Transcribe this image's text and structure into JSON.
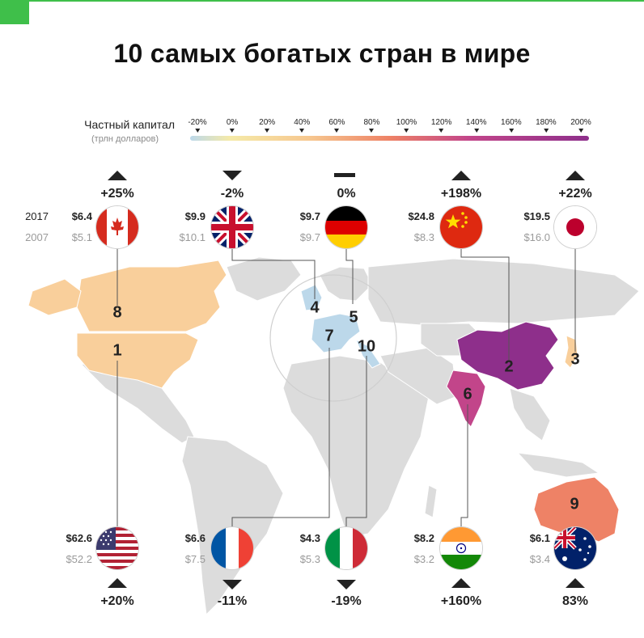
{
  "title": "10 самых богатых стран в мире",
  "legend": {
    "label": "Частный капитал",
    "sublabel": "(трлн долларов)",
    "ticks": [
      "-20%",
      "0%",
      "20%",
      "40%",
      "60%",
      "80%",
      "100%",
      "120%",
      "140%",
      "160%",
      "180%",
      "200%"
    ]
  },
  "years": {
    "y2017": "2017",
    "y2007": "2007"
  },
  "countries": {
    "canada": {
      "rank": "8",
      "v2017": "$6.4",
      "v2007": "$5.1",
      "change": "+25%",
      "direction": "up"
    },
    "uk": {
      "rank": "4",
      "v2017": "$9.9",
      "v2007": "$10.1",
      "change": "-2%",
      "direction": "down"
    },
    "germany": {
      "rank": "5",
      "v2017": "$9.7",
      "v2007": "$9.7",
      "change": "0%",
      "direction": "flat"
    },
    "china": {
      "rank": "2",
      "v2017": "$24.8",
      "v2007": "$8.3",
      "change": "+198%",
      "direction": "up"
    },
    "japan": {
      "rank": "3",
      "v2017": "$19.5",
      "v2007": "$16.0",
      "change": "+22%",
      "direction": "up"
    },
    "usa": {
      "rank": "1",
      "v2017": "$62.6",
      "v2007": "$52.2",
      "change": "+20%",
      "direction": "up"
    },
    "france": {
      "rank": "7",
      "v2017": "$6.6",
      "v2007": "$7.5",
      "change": "-11%",
      "direction": "down"
    },
    "italy": {
      "rank": "10",
      "v2017": "$4.3",
      "v2007": "$5.3",
      "change": "-19%",
      "direction": "down"
    },
    "india": {
      "rank": "6",
      "v2017": "$8.2",
      "v2007": "$3.2",
      "change": "+160%",
      "direction": "up"
    },
    "australia": {
      "rank": "9",
      "v2017": "$6.1",
      "v2007": "$3.4",
      "change": "83%",
      "direction": "up"
    }
  },
  "colors": {
    "accent": "#3fbf4a",
    "land": "#dcdcdc",
    "north_america": "#f9cf9b",
    "europe": "#bcd8ea",
    "china": "#8e2f8b",
    "india": "#c2458a",
    "australia": "#ee8266",
    "japan": "#f9cf9b"
  }
}
